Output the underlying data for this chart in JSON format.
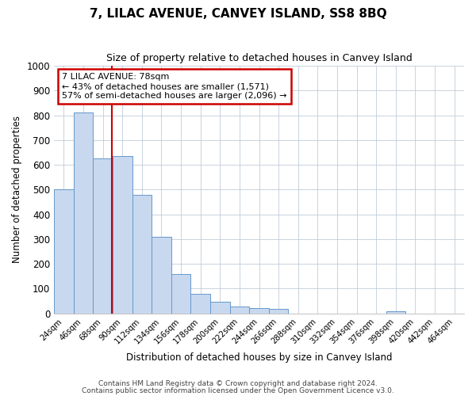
{
  "title": "7, LILAC AVENUE, CANVEY ISLAND, SS8 8BQ",
  "subtitle": "Size of property relative to detached houses in Canvey Island",
  "xlabel": "Distribution of detached houses by size in Canvey Island",
  "ylabel": "Number of detached properties",
  "bar_color": "#c8d8ee",
  "bar_edge_color": "#6699cc",
  "bg_color": "#ffffff",
  "fig_bg_color": "#ffffff",
  "grid_color": "#c0ccd8",
  "categories": [
    "24sqm",
    "46sqm",
    "68sqm",
    "90sqm",
    "112sqm",
    "134sqm",
    "156sqm",
    "178sqm",
    "200sqm",
    "222sqm",
    "244sqm",
    "266sqm",
    "288sqm",
    "310sqm",
    "332sqm",
    "354sqm",
    "376sqm",
    "398sqm",
    "420sqm",
    "442sqm",
    "464sqm"
  ],
  "values": [
    500,
    810,
    625,
    635,
    480,
    310,
    160,
    80,
    47,
    27,
    22,
    17,
    0,
    0,
    0,
    0,
    0,
    10,
    0,
    0,
    0
  ],
  "ylim": [
    0,
    1000
  ],
  "yticks": [
    0,
    100,
    200,
    300,
    400,
    500,
    600,
    700,
    800,
    900,
    1000
  ],
  "vline_color": "#cc0000",
  "vline_x_idx": 2,
  "annotation_title": "7 LILAC AVENUE: 78sqm",
  "annotation_line1": "← 43% of detached houses are smaller (1,571)",
  "annotation_line2": "57% of semi-detached houses are larger (2,096) →",
  "annotation_box_color": "#cc0000",
  "footer1": "Contains HM Land Registry data © Crown copyright and database right 2024.",
  "footer2": "Contains public sector information licensed under the Open Government Licence v3.0."
}
